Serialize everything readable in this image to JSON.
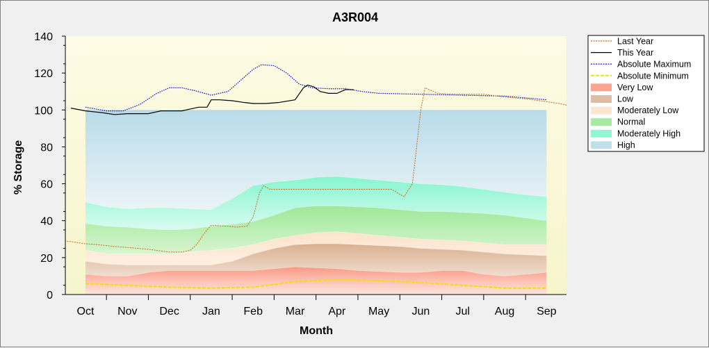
{
  "chart_data": {
    "type": "area",
    "title": "A3R004",
    "xlabel": "Month",
    "ylabel": "% Storage",
    "ylim": [
      0,
      140
    ],
    "yticks": [
      0,
      20,
      40,
      60,
      80,
      100,
      120,
      140
    ],
    "months": [
      "Oct",
      "Nov",
      "Dec",
      "Jan",
      "Feb",
      "Mar",
      "Apr",
      "May",
      "Jun",
      "Jul",
      "Aug",
      "Sep"
    ],
    "legend_position": "right",
    "colors": {
      "plot_bg_top": "#fdfbe4",
      "plot_bg_bottom": "#f7f5cc",
      "very_low": "#fa9a85",
      "low": "#dcb698",
      "moderately_low": "#fde3cc",
      "normal": "#9ee89a",
      "moderately_high": "#86f5d0",
      "high": "#b9dbe9",
      "last_year": "#c8641e",
      "this_year": "#000000",
      "absolute_maximum": "#0000c8",
      "absolute_minimum": "#e6e600"
    },
    "legend": [
      {
        "label": "Last Year",
        "kind": "line-dotted",
        "color": "#c8641e"
      },
      {
        "label": "This Year",
        "kind": "line-solid",
        "color": "#000000"
      },
      {
        "label": "Absolute Maximum",
        "kind": "line-dotted",
        "color": "#0000c8"
      },
      {
        "label": "Absolute Minimum",
        "kind": "line-dashed",
        "color": "#e6e600"
      },
      {
        "label": "Very Low",
        "kind": "fill",
        "color": "#fa9a85"
      },
      {
        "label": "Low",
        "kind": "fill",
        "color": "#dcb698"
      },
      {
        "label": "Moderately Low",
        "kind": "fill",
        "color": "#fde3cc"
      },
      {
        "label": "Normal",
        "kind": "fill",
        "color": "#9ee89a"
      },
      {
        "label": "Moderately High",
        "kind": "fill",
        "color": "#86f5d0"
      },
      {
        "label": "High",
        "kind": "fill",
        "color": "#b9dbe9"
      }
    ],
    "bands_x": [
      0,
      0.5,
      1,
      1.5,
      2,
      2.5,
      3,
      3.5,
      4,
      4.5,
      5,
      5.5,
      6,
      6.5,
      7,
      7.5,
      8,
      8.5,
      9,
      9.5,
      10,
      10.5,
      11
    ],
    "band_tops": {
      "very_low": [
        11,
        10,
        10,
        12,
        13,
        13,
        13,
        13,
        13,
        14,
        15,
        14.5,
        14,
        13,
        12.5,
        12,
        12,
        13,
        13,
        11,
        10,
        11,
        12
      ],
      "low": [
        18,
        16.5,
        16,
        16,
        16,
        16,
        16,
        18,
        22,
        25,
        27,
        27.5,
        27.5,
        27,
        26.5,
        26,
        25,
        24.5,
        24,
        23,
        22,
        21.5,
        21
      ],
      "moderately_low": [
        24,
        22,
        22,
        22,
        22,
        23,
        24,
        25,
        27,
        30,
        32,
        33.5,
        34,
        33,
        32,
        31,
        30,
        29.5,
        29,
        28,
        27,
        27,
        27
      ],
      "normal": [
        38.5,
        37,
        36.5,
        35.5,
        35,
        35.5,
        37,
        38,
        39.5,
        43,
        47,
        48,
        48,
        47.5,
        47,
        46,
        45,
        45,
        44.5,
        44,
        43,
        41.5,
        40
      ],
      "moderately_high": [
        50,
        47.5,
        46.5,
        47,
        47,
        46.5,
        46,
        52,
        59,
        61,
        62,
        63.5,
        64,
        63,
        62,
        61,
        60,
        59.5,
        58.5,
        57,
        55.5,
        54,
        53
      ],
      "high": [
        100,
        100,
        100,
        100,
        100,
        100,
        100,
        100,
        100,
        100,
        100,
        100,
        100,
        100,
        100,
        100,
        100,
        100,
        100,
        100,
        100,
        100,
        100
      ]
    },
    "absolute_maximum": {
      "x": [
        0,
        0.5,
        0.9,
        1.3,
        1.7,
        2.0,
        2.3,
        2.6,
        3.0,
        3.4,
        3.75,
        4.0,
        4.2,
        4.5,
        4.8,
        5.1,
        5.4,
        5.8,
        6.2,
        6.6,
        7.0,
        8.0,
        9.0,
        10.0,
        10.5,
        11.0
      ],
      "y": [
        101.5,
        99.5,
        99.5,
        103,
        109,
        112,
        112,
        110.5,
        108,
        110,
        117,
        122,
        124.5,
        124,
        120,
        114,
        112,
        111.5,
        111.5,
        110,
        109,
        108.5,
        108,
        107.5,
        106.5,
        105.5
      ]
    },
    "absolute_minimum": {
      "x": [
        0,
        1,
        2,
        3,
        4,
        5,
        6,
        7,
        8,
        9,
        10,
        11
      ],
      "y": [
        6,
        5,
        4,
        3.5,
        4,
        7,
        8,
        7.5,
        6.5,
        5,
        3.5,
        3.5
      ]
    },
    "last_year": {
      "x": [
        -0.5,
        -0.3,
        0,
        0.3,
        0.7,
        1.0,
        1.5,
        2.0,
        2.3,
        2.5,
        2.65,
        2.8,
        2.9,
        3.0,
        3.4,
        3.6,
        3.85,
        4.0,
        4.15,
        4.25,
        4.4,
        4.6,
        5.0,
        5.5,
        6.0,
        6.5,
        7.0,
        7.3,
        7.45,
        7.6,
        7.8,
        8.0,
        8.1,
        8.4,
        8.8,
        9.0,
        9.5,
        10.0,
        10.5,
        11.0,
        11.3,
        11.5
      ],
      "y": [
        29,
        28.5,
        27.5,
        27,
        26,
        25.5,
        24.5,
        23,
        23,
        24,
        27,
        32,
        35,
        37.5,
        37,
        36.5,
        37,
        42,
        55,
        59,
        57,
        57,
        57,
        57,
        57,
        57,
        57,
        57,
        55,
        53,
        60,
        100,
        112,
        109,
        108.5,
        108.5,
        108.5,
        107,
        106,
        104.5,
        103.5,
        102.5
      ]
    },
    "this_year": {
      "x": [
        -0.35,
        0,
        0.4,
        0.7,
        1.0,
        1.3,
        1.5,
        1.8,
        2.0,
        2.3,
        2.5,
        2.7,
        2.9,
        3.0,
        3.2,
        3.5,
        3.8,
        4.0,
        4.3,
        4.6,
        5.0,
        5.2,
        5.3,
        5.45,
        5.6,
        5.8,
        6.0,
        6.2,
        6.4
      ],
      "y": [
        101,
        99.5,
        98.5,
        97.5,
        98,
        98,
        98,
        99.5,
        99.5,
        99.5,
        100.5,
        101.5,
        101.5,
        105.5,
        105.5,
        105,
        104,
        103.5,
        103.5,
        104,
        105.5,
        112,
        113.5,
        112.5,
        110,
        109,
        109,
        111,
        111
      ]
    }
  }
}
